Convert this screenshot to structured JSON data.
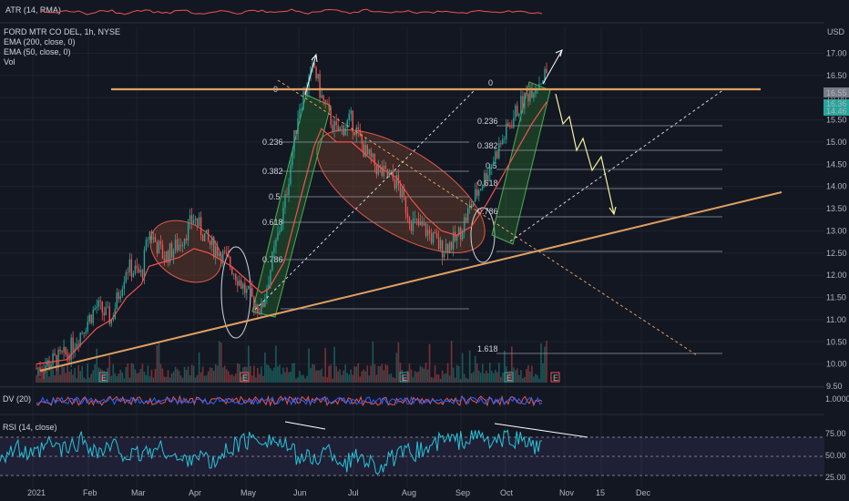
{
  "chart_data": {
    "type": "line",
    "colors": {
      "background": "#131722",
      "up": "#26a69a",
      "down": "#ef5350",
      "resistance": "#e0a060",
      "fib_line": "#9598a1",
      "channel_fill": "#2e7d32",
      "ellipse_fill": "#8d4b2a",
      "ellipse_stroke": "#e05a4a",
      "annotation": "#ffffff",
      "rsi_line": "#26c6da",
      "atr_line": "#ef5350",
      "ema": "#ef5350"
    },
    "atr": {
      "label": "ATR (14, RMA)"
    },
    "price": {
      "symbol": "FORD MTR CO DEL, 1h, NYSE",
      "ema200_label": "EMA (200, close, 0)",
      "ema50_label": "EMA (50, close, 0)",
      "vol_label": "Vol",
      "currency": "USD",
      "last_price": "16.55",
      "ema_badge_1": "16.36",
      "ema_badge_2": "14.46",
      "ylim": [
        9.5,
        17.5
      ],
      "y_ticks": [
        "17.00",
        "16.50",
        "16.00",
        "15.50",
        "15.00",
        "14.50",
        "14.00",
        "13.50",
        "13.00",
        "12.50",
        "12.00",
        "11.50",
        "11.00",
        "10.50",
        "10.00",
        "9.50"
      ],
      "x_ticks": [
        "2021",
        "Feb",
        "Mar",
        "Apr",
        "May",
        "Jun",
        "Jul",
        "Aug",
        "Sep",
        "Oct",
        "Nov",
        "15",
        "Dec"
      ],
      "events": [
        "E",
        "E",
        "E",
        "E"
      ],
      "event_future": "E",
      "series_x": [
        0,
        0.04,
        0.08,
        0.1,
        0.12,
        0.14,
        0.15,
        0.17,
        0.19,
        0.21,
        0.23,
        0.24,
        0.26,
        0.28,
        0.3,
        0.31,
        0.33,
        0.35,
        0.37,
        0.38,
        0.4,
        0.42,
        0.44,
        0.46,
        0.48,
        0.5,
        0.52,
        0.54,
        0.56,
        0.58,
        0.6,
        0.62,
        0.64,
        0.66,
        0.68
      ],
      "series_y": [
        9.9,
        10.2,
        11.3,
        11.0,
        12.2,
        12.0,
        13.0,
        12.4,
        12.7,
        13.3,
        12.7,
        12.6,
        12.2,
        11.6,
        11.2,
        12.0,
        13.5,
        15.8,
        16.7,
        16.0,
        15.2,
        15.5,
        14.7,
        14.3,
        14.1,
        13.2,
        13.0,
        12.6,
        12.8,
        13.6,
        14.3,
        15.0,
        15.7,
        16.2,
        16.55
      ],
      "ema50": [
        10.0,
        10.1,
        10.8,
        11.0,
        11.5,
        11.8,
        12.2,
        12.3,
        12.4,
        12.6,
        12.5,
        12.4,
        12.2,
        11.9,
        11.6,
        11.7,
        12.3,
        13.6,
        14.9,
        15.3,
        15.0,
        15.0,
        14.7,
        14.4,
        14.2,
        13.7,
        13.3,
        13.0,
        12.9,
        13.1,
        13.6,
        14.2,
        14.8,
        15.4,
        15.9
      ],
      "resistance_label": "0",
      "fib_left": [
        "0",
        "0.236",
        "0.382",
        "0.5",
        "0.618",
        "0.786"
      ],
      "fib_right": [
        "0",
        "0.236",
        "0.382",
        "0.5",
        "0.618",
        "0.786",
        "1.618"
      ]
    },
    "rsi": {
      "label": "RSI (14, close)",
      "ylim": [
        20,
        85
      ],
      "y_ticks": [
        "75.00",
        "50.00",
        "25.00"
      ],
      "series": [
        52,
        60,
        48,
        66,
        58,
        72,
        55,
        63,
        48,
        57,
        60,
        42,
        55,
        38,
        62,
        70,
        75,
        68,
        52,
        45,
        58,
        40,
        53,
        35,
        48,
        55,
        60,
        72,
        70,
        78,
        66,
        74,
        70,
        58
      ]
    },
    "osc": {
      "label": "DV (20)",
      "y_tick": "1.0000"
    }
  }
}
